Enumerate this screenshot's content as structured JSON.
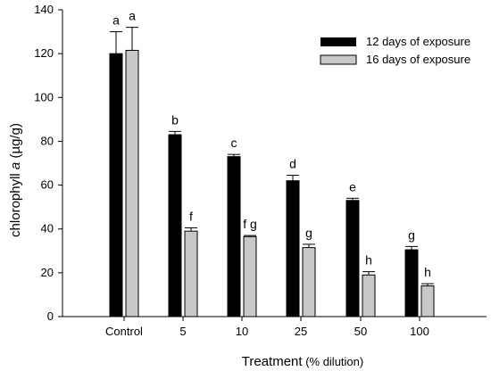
{
  "chart_data": {
    "type": "bar",
    "title": "",
    "ylabel_main": "chlorophyll ",
    "ylabel_italic": "a",
    "ylabel_unit": " (µg/g)",
    "xlabel_main": "Treatment",
    "xlabel_suffix": " (% dilution)",
    "ylim": [
      0,
      140
    ],
    "yticks": [
      0,
      20,
      40,
      60,
      80,
      100,
      120,
      140
    ],
    "categories": [
      "Control",
      "5",
      "10",
      "25",
      "50",
      "100"
    ],
    "legend_position": "top-right",
    "grid": false,
    "series": [
      {
        "name": "12 days of exposure",
        "color": "#000000",
        "values": [
          120,
          83,
          73,
          62,
          53,
          30.5
        ],
        "errors": [
          10,
          1.5,
          1,
          2.5,
          1,
          1.5
        ],
        "labels": [
          "a",
          "b",
          "c",
          "d",
          "e",
          "g"
        ]
      },
      {
        "name": "16 days of exposure",
        "color": "#c8c8c8",
        "values": [
          121.5,
          39,
          36.5,
          31.5,
          19,
          14
        ],
        "errors": [
          10.5,
          1.5,
          0.5,
          1.5,
          1.5,
          1
        ],
        "labels": [
          "a",
          "f",
          "f g",
          "g",
          "h",
          "h"
        ]
      }
    ]
  }
}
